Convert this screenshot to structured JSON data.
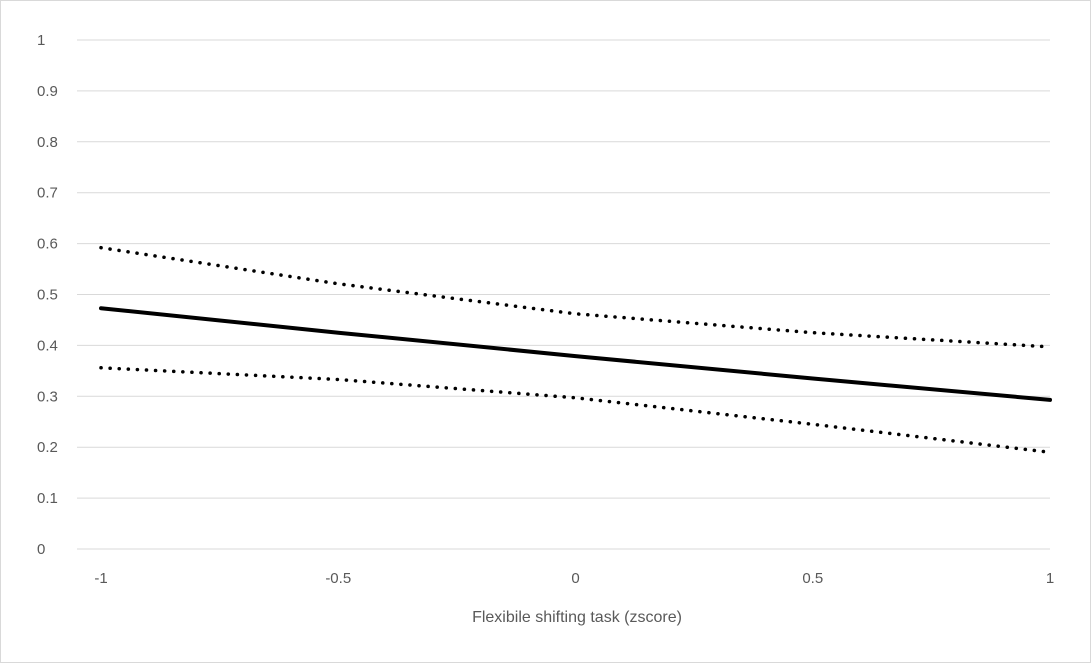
{
  "chart_data": {
    "type": "line",
    "title": "",
    "xlabel": "Flexibile shifting task (zscore)",
    "ylabel": "",
    "x_ticks": [
      "-1",
      "-0.5",
      "0",
      "0.5",
      "1"
    ],
    "y_ticks": [
      "0",
      "0.1",
      "0.2",
      "0.3",
      "0.4",
      "0.5",
      "0.6",
      "0.7",
      "0.8",
      "0.9",
      "1"
    ],
    "xlim": [
      -1,
      1
    ],
    "ylim": [
      0,
      1
    ],
    "grid": "horizontal",
    "legend": "none",
    "series": [
      {
        "style": "solid",
        "color": "#000000",
        "x": [
          -1,
          -0.5,
          0,
          0.5,
          1
        ],
        "y": [
          0.473,
          0.425,
          0.379,
          0.335,
          0.293
        ]
      },
      {
        "style": "dotted",
        "color": "#000000",
        "x": [
          -1,
          -0.5,
          0,
          0.5,
          1
        ],
        "y": [
          0.592,
          0.521,
          0.462,
          0.425,
          0.397
        ]
      },
      {
        "style": "dotted",
        "color": "#000000",
        "x": [
          -1,
          -0.5,
          0,
          0.5,
          1
        ],
        "y": [
          0.356,
          0.333,
          0.297,
          0.245,
          0.19
        ]
      }
    ]
  }
}
